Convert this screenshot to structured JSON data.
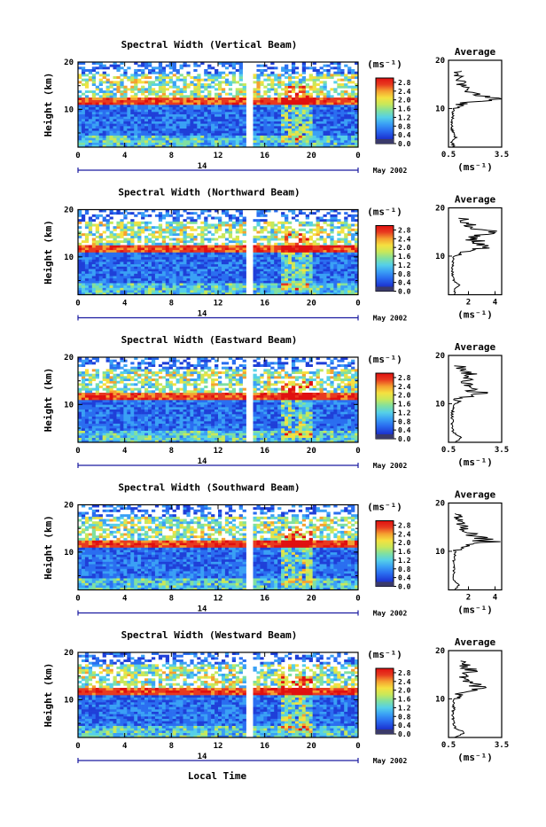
{
  "figure": {
    "xlabel": "Local Time",
    "date_label": "May 2002",
    "day_label": "14",
    "ylabel": "Height (km)",
    "unit_label": "(ms⁻¹)",
    "avg_unit_label": "(ms⁻¹)",
    "avg_title": "Average"
  },
  "colors": {
    "colormap": [
      "#1a1aa0",
      "#1f3fd8",
      "#2a6ef0",
      "#3aa0f5",
      "#55d0e8",
      "#80e0a0",
      "#c8e85a",
      "#f5e040",
      "#f5a030",
      "#e83a20",
      "#e01010"
    ],
    "gap": "#ffffff"
  },
  "chart_data": [
    {
      "type": "heatmap",
      "title": "Spectral Width (Vertical Beam)",
      "x_ticks": [
        "0",
        "4",
        "8",
        "12",
        "16",
        "20",
        "0"
      ],
      "xlim": [
        0,
        24
      ],
      "y_ticks": [
        "10",
        "20"
      ],
      "ylim": [
        2,
        20
      ],
      "colorbar_ticks": [
        "0.0",
        "0.4",
        "0.8",
        "1.2",
        "1.6",
        "2.0",
        "2.4",
        "2.8"
      ],
      "colorbar_range": [
        0.0,
        3.0
      ],
      "average": {
        "title": "Average",
        "x_ticks": [
          "0.5",
          "3.5"
        ],
        "xlim": [
          0.5,
          3.5
        ],
        "y_ticks": [
          "10",
          "20"
        ],
        "height_km": [
          2,
          3,
          4,
          5,
          6,
          7,
          8,
          9,
          10,
          11,
          12,
          13,
          14,
          15,
          16,
          17,
          18
        ],
        "width_ms": [
          0.8,
          0.7,
          0.9,
          0.75,
          0.7,
          0.7,
          0.72,
          0.75,
          0.8,
          1.3,
          2.9,
          2.0,
          1.4,
          1.3,
          1.2,
          1.1,
          1.0
        ]
      }
    },
    {
      "type": "heatmap",
      "title": "Spectral Width (Northward Beam)",
      "x_ticks": [
        "0",
        "4",
        "8",
        "12",
        "16",
        "20",
        "0"
      ],
      "xlim": [
        0,
        24
      ],
      "y_ticks": [
        "10",
        "20"
      ],
      "ylim": [
        2,
        20
      ],
      "colorbar_ticks": [
        "0.0",
        "0.4",
        "0.8",
        "1.2",
        "1.6",
        "2.0",
        "2.4",
        "2.8"
      ],
      "colorbar_range": [
        0.0,
        3.0
      ],
      "average": {
        "title": "Average",
        "x_ticks": [
          "2",
          "4"
        ],
        "xlim": [
          0.5,
          4.5
        ],
        "y_ticks": [
          "10",
          "20"
        ],
        "height_km": [
          2,
          3,
          4,
          5,
          6,
          7,
          8,
          9,
          10,
          11,
          12,
          13,
          14,
          15,
          16,
          17,
          18
        ],
        "width_ms": [
          1.0,
          0.9,
          1.3,
          0.9,
          0.8,
          0.8,
          0.8,
          0.85,
          0.9,
          1.8,
          3.3,
          2.6,
          2.0,
          3.5,
          2.2,
          1.8,
          1.5
        ]
      }
    },
    {
      "type": "heatmap",
      "title": "Spectral Width (Eastward Beam)",
      "x_ticks": [
        "0",
        "4",
        "8",
        "12",
        "16",
        "20",
        "0"
      ],
      "xlim": [
        0,
        24
      ],
      "y_ticks": [
        "10",
        "20"
      ],
      "ylim": [
        2,
        20
      ],
      "colorbar_ticks": [
        "0.0",
        "0.4",
        "0.8",
        "1.2",
        "1.6",
        "2.0",
        "2.4",
        "2.8"
      ],
      "colorbar_range": [
        0.0,
        3.0
      ],
      "average": {
        "title": "Average",
        "x_ticks": [
          "0.5",
          "3.5"
        ],
        "xlim": [
          0.5,
          3.5
        ],
        "y_ticks": [
          "10",
          "20"
        ],
        "height_km": [
          2,
          3,
          4,
          5,
          6,
          7,
          8,
          9,
          10,
          11,
          12,
          13,
          14,
          15,
          16,
          17,
          18
        ],
        "width_ms": [
          0.9,
          1.2,
          0.8,
          0.7,
          0.7,
          0.7,
          0.7,
          0.75,
          0.8,
          1.1,
          2.3,
          1.9,
          1.6,
          1.5,
          1.7,
          1.3,
          1.1
        ]
      }
    },
    {
      "type": "heatmap",
      "title": "Spectral Width (Southward Beam)",
      "x_ticks": [
        "0",
        "4",
        "8",
        "12",
        "16",
        "20",
        "0"
      ],
      "xlim": [
        0,
        24
      ],
      "y_ticks": [
        "10",
        "20"
      ],
      "ylim": [
        2,
        20
      ],
      "colorbar_ticks": [
        "0.0",
        "0.4",
        "0.8",
        "1.2",
        "1.6",
        "2.0",
        "2.4",
        "2.8"
      ],
      "colorbar_range": [
        0.0,
        3.0
      ],
      "average": {
        "title": "Average",
        "x_ticks": [
          "2",
          "4"
        ],
        "xlim": [
          0.5,
          4.5
        ],
        "y_ticks": [
          "10",
          "20"
        ],
        "height_km": [
          2,
          3,
          4,
          5,
          6,
          7,
          8,
          9,
          10,
          11,
          12,
          13,
          14,
          15,
          16,
          17,
          18
        ],
        "width_ms": [
          1.0,
          1.3,
          0.9,
          0.9,
          0.9,
          0.9,
          0.9,
          0.95,
          1.0,
          1.6,
          3.4,
          2.6,
          1.8,
          1.6,
          1.4,
          1.3,
          1.2
        ]
      }
    },
    {
      "type": "heatmap",
      "title": "Spectral Width (Westward Beam)",
      "x_ticks": [
        "0",
        "4",
        "8",
        "12",
        "16",
        "20",
        "0"
      ],
      "xlim": [
        0,
        24
      ],
      "y_ticks": [
        "10",
        "20"
      ],
      "ylim": [
        2,
        20
      ],
      "colorbar_ticks": [
        "0.0",
        "0.4",
        "0.8",
        "1.2",
        "1.6",
        "2.0",
        "2.4",
        "2.8"
      ],
      "colorbar_range": [
        0.0,
        3.0
      ],
      "average": {
        "title": "Average",
        "x_ticks": [
          "0.5",
          "3.5"
        ],
        "xlim": [
          0.5,
          3.5
        ],
        "y_ticks": [
          "10",
          "20"
        ],
        "height_km": [
          2,
          3,
          4,
          5,
          6,
          7,
          8,
          9,
          10,
          11,
          12,
          13,
          14,
          15,
          16,
          17,
          18
        ],
        "width_ms": [
          0.9,
          1.4,
          0.9,
          0.8,
          0.75,
          0.75,
          0.8,
          0.8,
          0.85,
          1.2,
          2.4,
          2.0,
          1.6,
          1.5,
          1.7,
          1.4,
          1.2
        ]
      }
    }
  ]
}
